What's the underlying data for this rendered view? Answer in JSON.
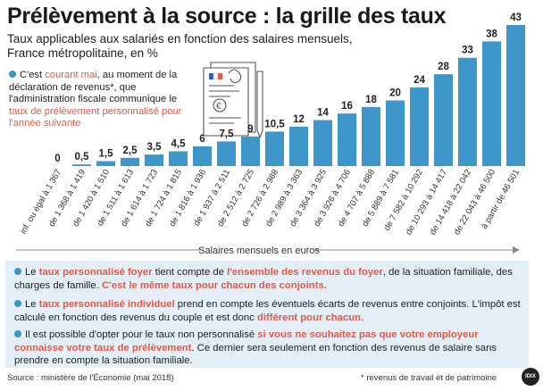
{
  "header": {
    "title": "Prélèvement à la source : la grille des taux",
    "subtitle": "Taux applicables aux salariés en fonction des salaires mensuels, France métropolitaine, en %"
  },
  "note": {
    "p1": "C'est ",
    "p2": "courant mai",
    "p3": ", au moment de la déclaration de revenus*, que l'administration fiscale communique le ",
    "p4": "taux de prélèvement personnalisé pour l'année suivante"
  },
  "bullets": [
    {
      "t1": "Le ",
      "t2": "taux personnalisé foyer",
      "t3": " tient compte de ",
      "t4": "l'ensemble des revenus du foyer",
      "t5": ", de la situation familiale, des charges de famille. ",
      "t6": "C'est le même taux pour chacun des conjoints."
    },
    {
      "t1": "Le ",
      "t2": "taux personnalisé individuel",
      "t3": " prend en compte les éventuels écarts de revenus entre conjoints. L'impôt est calculé en fonction des revenus du couple et est donc ",
      "t4": "différent pour chacun",
      "t5": "."
    },
    {
      "t1": "Il est possible d'opter pour le taux non personnalisé ",
      "t2": "si vous ne souhaitez pas que votre employeur connaisse votre taux de prélèvement",
      "t3": ". Ce dernier sera seulement en fonction des revenus de salaire sans prendre en compte la situation familiale."
    }
  ],
  "footer": {
    "source": "Source : ministère de l'Économie (mai 2018)",
    "footnote": "* revenus de travail et de patrimoine",
    "logo": "IDIX"
  },
  "colors": {
    "bar": "#3d96c9",
    "highlight": "#e05a47",
    "box": "#e3eef7"
  },
  "chart_data": {
    "type": "bar",
    "xlabel": "Salaires mensuels en euros",
    "categories": [
      "inf. ou égal à 1 367",
      "de 1 368 à 1 419",
      "de 1 420 à 1 510",
      "de 1 511 à 1 613",
      "de 1 614 à 1 723",
      "de 1 724 à 1 815",
      "de 1 816 à 1 936",
      "de 1 937 à 2 511",
      "de 2 512 à 2 725",
      "de 2 726 à 2 988",
      "de 2 989 à 3 363",
      "de 3 364 à 3 925",
      "de 3 926 à 4 706",
      "de 4 707 à 5 888",
      "de 5 889 à 7 581",
      "de 7 582 à 10 292",
      "de 10 293 à 14 417",
      "de 14 418 à 22 042",
      "de 22 043 à 46 500",
      "à partir de 46 501"
    ],
    "values": [
      0,
      0.5,
      1.5,
      2.5,
      3.5,
      4.5,
      6,
      7.5,
      9,
      10.5,
      12,
      14,
      16,
      18,
      20,
      24,
      28,
      33,
      38,
      43
    ],
    "value_labels": [
      "0",
      "0,5",
      "1,5",
      "2,5",
      "3,5",
      "4,5",
      "6",
      "7,5",
      "9",
      "10,5",
      "12",
      "14",
      "16",
      "18",
      "20",
      "24",
      "28",
      "33",
      "38",
      "43"
    ],
    "ylim": [
      0,
      43
    ]
  }
}
